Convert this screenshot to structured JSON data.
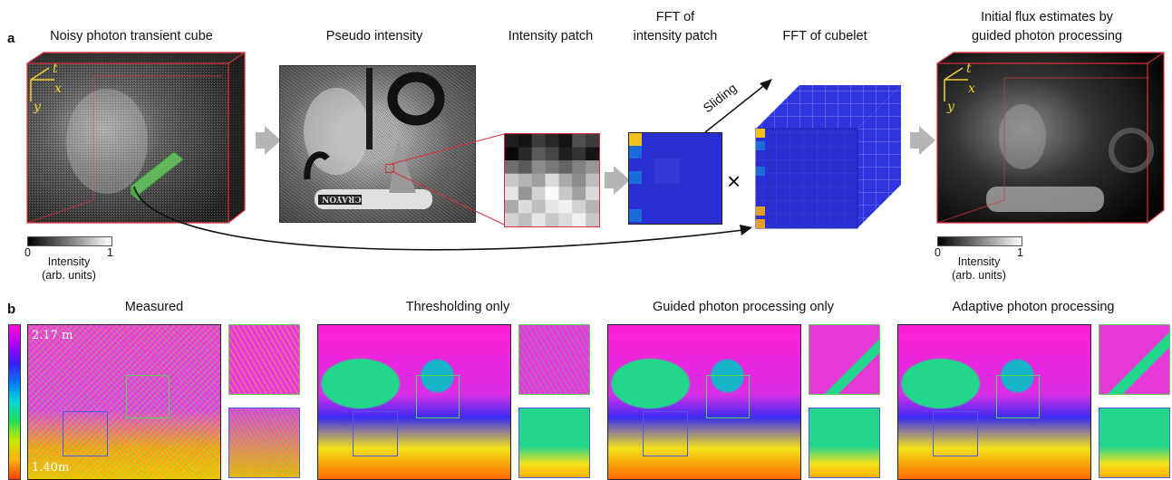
{
  "panel_a": {
    "letter": "a",
    "titles": {
      "noisy_cube": "Noisy photon transient cube",
      "pseudo_intensity": "Pseudo intensity",
      "intensity_patch": "Intensity patch",
      "fft_patch_line1": "FFT of",
      "fft_patch_line2": "intensity patch",
      "fft_cubelet": "FFT of cubelet",
      "initial_flux_line1": "Initial flux estimates by",
      "initial_flux_line2": "guided photon processing"
    },
    "axis_labels": {
      "t": "t",
      "x": "x",
      "y": "y"
    },
    "sliding_label": "Sliding",
    "times_symbol": "×",
    "crayon_text": "CRAYON",
    "colorbar_left": {
      "min": "0",
      "max": "1",
      "label_line1": "Intensity",
      "label_line2": "(arb. units)"
    },
    "colorbar_right": {
      "min": "0",
      "max": "1",
      "label_line1": "Intensity",
      "label_line2": "(arb. units)"
    }
  },
  "panel_b": {
    "letter": "b",
    "titles": {
      "measured": "Measured",
      "thresholding": "Thresholding only",
      "guided": "Guided photon processing only",
      "adaptive": "Adaptive photon processing"
    },
    "depth_max": "2.17 m",
    "depth_min": "1.40m"
  },
  "colors": {
    "accent_red": "#d8323a",
    "roi_green": "#56d456",
    "roi_blue": "#4a5ce0",
    "arrow_gray": "#b5b5b5",
    "cube_blue": "#2b2fd1",
    "patch_yellow": "#f2c21a"
  }
}
